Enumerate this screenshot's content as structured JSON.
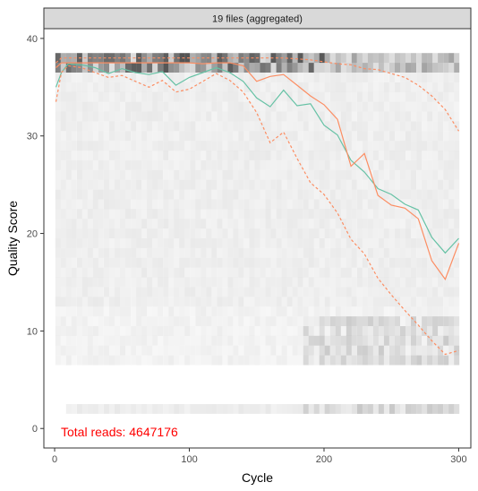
{
  "chart_data": {
    "type": "line",
    "facet_title": "19 files (aggregated)",
    "xlabel": "Cycle",
    "ylabel": "Quality Score",
    "xlim": [
      -8,
      309
    ],
    "ylim": [
      -2,
      41
    ],
    "x_ticks": [
      0,
      100,
      200,
      300
    ],
    "y_ticks": [
      0,
      10,
      20,
      30,
      40
    ],
    "grid": false,
    "annotation": "Total reads: 4647176",
    "colors": {
      "mean": "#66c2a5",
      "median": "#fc8d62",
      "quartile": "#fc8d62",
      "heatmap": "#000000",
      "annotation": "#ff0000",
      "strip_fill": "#d9d9d9"
    },
    "series": [
      {
        "style": "solid",
        "color": "#66c2a5",
        "x": [
          1,
          5,
          10,
          20,
          30,
          40,
          50,
          60,
          70,
          80,
          90,
          100,
          110,
          120,
          130,
          140,
          150,
          160,
          170,
          180,
          190,
          200,
          210,
          220,
          230,
          240,
          250,
          260,
          270,
          280,
          290,
          300
        ],
        "y": [
          35.0,
          36.5,
          37.4,
          37.3,
          37.0,
          36.4,
          36.9,
          36.5,
          36.3,
          36.6,
          35.2,
          36.0,
          36.5,
          37.0,
          36.5,
          35.6,
          33.9,
          33.0,
          34.7,
          33.1,
          33.3,
          31.1,
          30.1,
          27.5,
          26.3,
          24.6,
          24.0,
          23.0,
          22.4,
          19.6,
          18.0,
          19.5
        ]
      },
      {
        "style": "solid",
        "color": "#fc8d62",
        "x": [
          1,
          5,
          10,
          20,
          30,
          40,
          50,
          60,
          70,
          80,
          90,
          100,
          110,
          120,
          130,
          140,
          150,
          160,
          170,
          180,
          190,
          200,
          210,
          220,
          230,
          240,
          250,
          260,
          270,
          280,
          290,
          300
        ],
        "y": [
          37.0,
          37.5,
          37.5,
          37.5,
          37.5,
          37.5,
          37.5,
          37.5,
          37.5,
          37.5,
          37.5,
          37.5,
          37.4,
          37.5,
          37.5,
          37.2,
          35.6,
          36.1,
          36.3,
          35.2,
          34.1,
          33.2,
          31.7,
          26.9,
          28.2,
          23.9,
          22.9,
          22.6,
          21.5,
          17.2,
          15.3,
          19.0
        ]
      },
      {
        "style": "dashed",
        "color": "#fc8d62",
        "x": [
          1,
          5,
          10,
          20,
          30,
          40,
          50,
          60,
          70,
          80,
          90,
          100,
          110,
          120,
          130,
          140,
          150,
          160,
          170,
          180,
          190,
          200,
          210,
          220,
          230,
          240,
          250,
          260,
          270,
          280,
          290,
          300
        ],
        "y": [
          37.5,
          38.0,
          38.0,
          38.0,
          38.0,
          38.0,
          38.0,
          38.0,
          38.0,
          38.0,
          38.0,
          38.0,
          38.0,
          38.0,
          38.0,
          38.0,
          38.0,
          38.0,
          38.0,
          37.9,
          37.8,
          37.6,
          37.4,
          37.3,
          36.9,
          36.8,
          36.4,
          36.0,
          35.2,
          34.1,
          32.7,
          30.5
        ]
      },
      {
        "style": "dashed",
        "color": "#fc8d62",
        "x": [
          1,
          5,
          10,
          20,
          30,
          40,
          50,
          60,
          70,
          80,
          90,
          100,
          110,
          120,
          130,
          140,
          150,
          160,
          170,
          180,
          190,
          200,
          210,
          220,
          230,
          240,
          250,
          260,
          270,
          280,
          290,
          300
        ],
        "y": [
          33.5,
          36.5,
          37.2,
          37.0,
          36.5,
          36.0,
          36.2,
          35.6,
          35.0,
          35.7,
          34.5,
          34.8,
          35.6,
          36.4,
          35.7,
          34.5,
          32.4,
          29.3,
          30.4,
          27.7,
          25.2,
          24.0,
          22.1,
          19.4,
          17.9,
          15.4,
          13.7,
          12.1,
          10.6,
          9.0,
          7.6,
          8.0
        ]
      }
    ]
  }
}
